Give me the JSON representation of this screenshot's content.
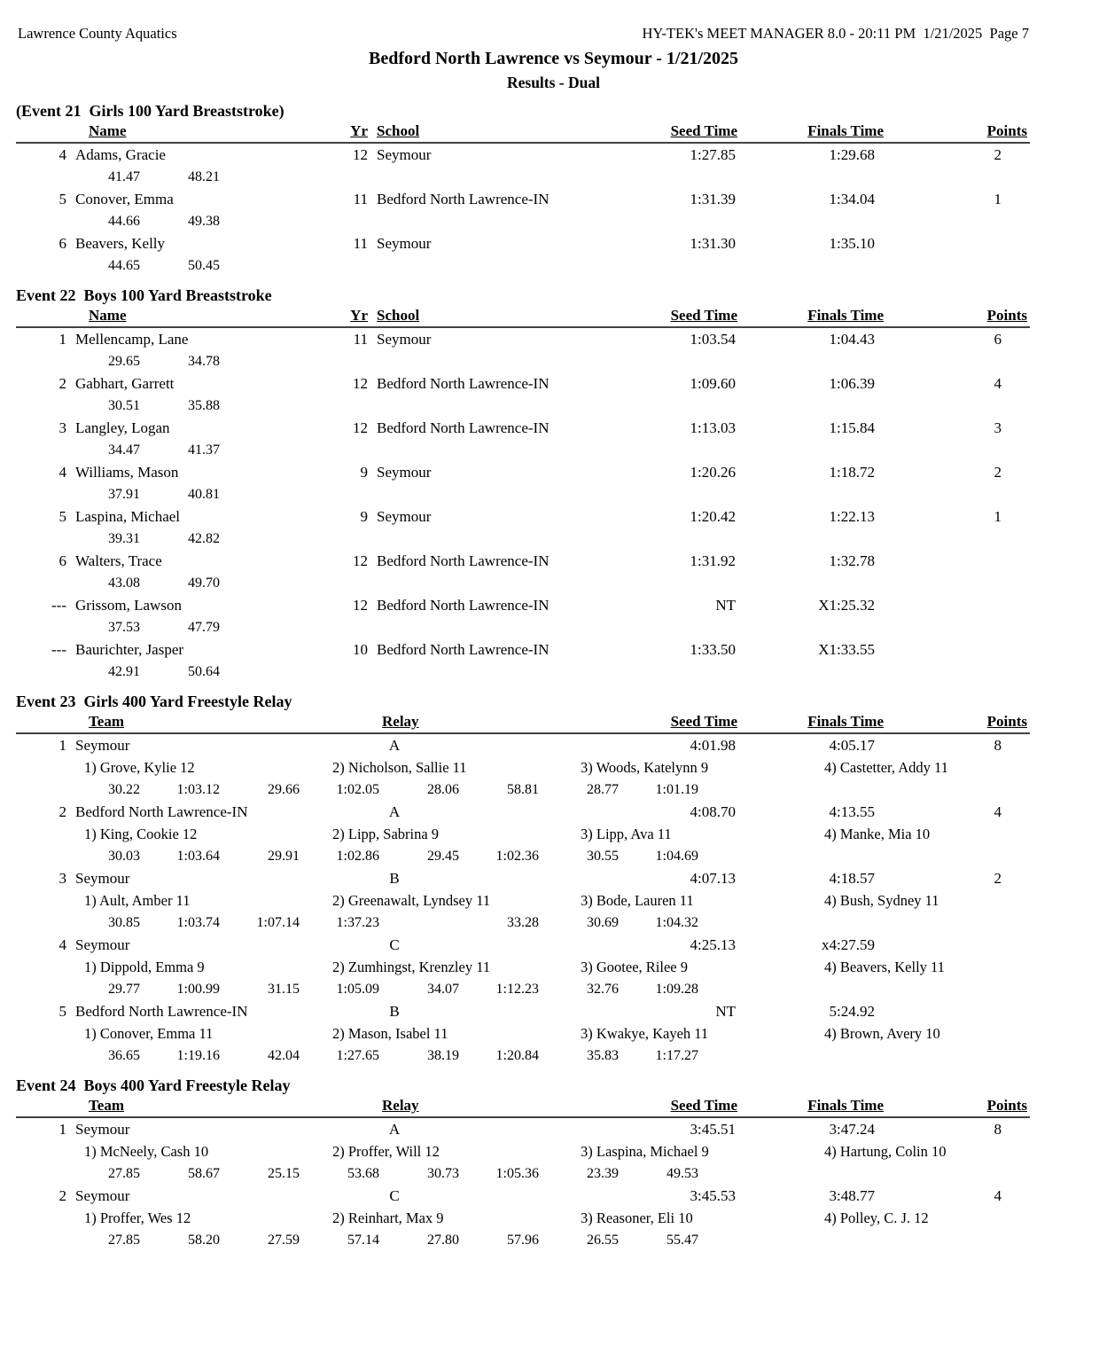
{
  "page": {
    "facility": "Lawrence County Aquatics",
    "report_info": "HY-TEK's MEET MANAGER 8.0 - 20:11 PM  1/21/2025  Page 7",
    "meet_title": "Bedford North Lawrence vs Seymour - 1/21/2025",
    "results_subtitle": "Results - Dual"
  },
  "individual_header": {
    "name": "Name",
    "yr": "Yr",
    "school": "School",
    "seed": "Seed Time",
    "finals": "Finals Time",
    "points": "Points"
  },
  "relay_header": {
    "team": "Team",
    "relay": "Relay",
    "seed": "Seed Time",
    "finals": "Finals Time",
    "points": "Points"
  },
  "events": [
    {
      "type": "individual",
      "title": "(Event 21  Girls 100 Yard Breaststroke)",
      "rows": [
        {
          "place": "4",
          "name": "Adams, Gracie",
          "yr": "12",
          "school": "Seymour",
          "seed": "1:27.85",
          "finals": "1:29.68",
          "points": "2",
          "splits": [
            "41.47",
            "48.21"
          ]
        },
        {
          "place": "5",
          "name": "Conover, Emma",
          "yr": "11",
          "school": "Bedford North Lawrence-IN",
          "seed": "1:31.39",
          "finals": "1:34.04",
          "points": "1",
          "splits": [
            "44.66",
            "49.38"
          ]
        },
        {
          "place": "6",
          "name": "Beavers, Kelly",
          "yr": "11",
          "school": "Seymour",
          "seed": "1:31.30",
          "finals": "1:35.10",
          "points": "",
          "splits": [
            "44.65",
            "50.45"
          ]
        }
      ]
    },
    {
      "type": "individual",
      "title": "Event 22  Boys 100 Yard Breaststroke",
      "rows": [
        {
          "place": "1",
          "name": "Mellencamp, Lane",
          "yr": "11",
          "school": "Seymour",
          "seed": "1:03.54",
          "finals": "1:04.43",
          "points": "6",
          "splits": [
            "29.65",
            "34.78"
          ]
        },
        {
          "place": "2",
          "name": "Gabhart, Garrett",
          "yr": "12",
          "school": "Bedford North Lawrence-IN",
          "seed": "1:09.60",
          "finals": "1:06.39",
          "points": "4",
          "splits": [
            "30.51",
            "35.88"
          ]
        },
        {
          "place": "3",
          "name": "Langley, Logan",
          "yr": "12",
          "school": "Bedford North Lawrence-IN",
          "seed": "1:13.03",
          "finals": "1:15.84",
          "points": "3",
          "splits": [
            "34.47",
            "41.37"
          ]
        },
        {
          "place": "4",
          "name": "Williams, Mason",
          "yr": "9",
          "school": "Seymour",
          "seed": "1:20.26",
          "finals": "1:18.72",
          "points": "2",
          "splits": [
            "37.91",
            "40.81"
          ]
        },
        {
          "place": "5",
          "name": "Laspina, Michael",
          "yr": "9",
          "school": "Seymour",
          "seed": "1:20.42",
          "finals": "1:22.13",
          "points": "1",
          "splits": [
            "39.31",
            "42.82"
          ]
        },
        {
          "place": "6",
          "name": "Walters, Trace",
          "yr": "12",
          "school": "Bedford North Lawrence-IN",
          "seed": "1:31.92",
          "finals": "1:32.78",
          "points": "",
          "splits": [
            "43.08",
            "49.70"
          ]
        },
        {
          "place": "---",
          "name": "Grissom, Lawson",
          "yr": "12",
          "school": "Bedford North Lawrence-IN",
          "seed": "NT",
          "finals": "X1:25.32",
          "points": "",
          "splits": [
            "37.53",
            "47.79"
          ]
        },
        {
          "place": "---",
          "name": "Baurichter, Jasper",
          "yr": "10",
          "school": "Bedford North Lawrence-IN",
          "seed": "1:33.50",
          "finals": "X1:33.55",
          "points": "",
          "splits": [
            "42.91",
            "50.64"
          ]
        }
      ]
    },
    {
      "type": "relay",
      "title": "Event 23  Girls 400 Yard Freestyle Relay",
      "rows": [
        {
          "place": "1",
          "team": "Seymour",
          "relay": "A",
          "seed": "4:01.98",
          "finals": "4:05.17",
          "points": "8",
          "swimmers": [
            "1) Grove, Kylie 12",
            "2) Nicholson, Sallie 11",
            "3) Woods, Katelynn 9",
            "4) Castetter, Addy 11"
          ],
          "splits": [
            "30.22",
            "1:03.12",
            "29.66",
            "1:02.05",
            "28.06",
            "58.81",
            "28.77",
            "1:01.19"
          ]
        },
        {
          "place": "2",
          "team": "Bedford North Lawrence-IN",
          "relay": "A",
          "seed": "4:08.70",
          "finals": "4:13.55",
          "points": "4",
          "swimmers": [
            "1) King, Cookie 12",
            "2) Lipp, Sabrina 9",
            "3) Lipp, Ava 11",
            "4) Manke, Mia 10"
          ],
          "splits": [
            "30.03",
            "1:03.64",
            "29.91",
            "1:02.86",
            "29.45",
            "1:02.36",
            "30.55",
            "1:04.69"
          ]
        },
        {
          "place": "3",
          "team": "Seymour",
          "relay": "B",
          "seed": "4:07.13",
          "finals": "4:18.57",
          "points": "2",
          "swimmers": [
            "1) Ault, Amber 11",
            "2) Greenawalt, Lyndsey 11",
            "3) Bode, Lauren 11",
            "4) Bush, Sydney 11"
          ],
          "splits": [
            "30.85",
            "1:03.74",
            "1:07.14",
            "1:37.23",
            "",
            "33.28",
            "30.69",
            "1:04.32"
          ]
        },
        {
          "place": "4",
          "team": "Seymour",
          "relay": "C",
          "seed": "4:25.13",
          "finals": "x4:27.59",
          "points": "",
          "swimmers": [
            "1) Dippold, Emma 9",
            "2) Zumhingst, Krenzley 11",
            "3) Gootee, Rilee 9",
            "4) Beavers, Kelly 11"
          ],
          "splits": [
            "29.77",
            "1:00.99",
            "31.15",
            "1:05.09",
            "34.07",
            "1:12.23",
            "32.76",
            "1:09.28"
          ]
        },
        {
          "place": "5",
          "team": "Bedford North Lawrence-IN",
          "relay": "B",
          "seed": "NT",
          "finals": "5:24.92",
          "points": "",
          "swimmers": [
            "1) Conover, Emma 11",
            "2) Mason, Isabel 11",
            "3) Kwakye, Kayeh 11",
            "4) Brown, Avery 10"
          ],
          "splits": [
            "36.65",
            "1:19.16",
            "42.04",
            "1:27.65",
            "38.19",
            "1:20.84",
            "35.83",
            "1:17.27"
          ]
        }
      ]
    },
    {
      "type": "relay",
      "title": "Event 24  Boys 400 Yard Freestyle Relay",
      "rows": [
        {
          "place": "1",
          "team": "Seymour",
          "relay": "A",
          "seed": "3:45.51",
          "finals": "3:47.24",
          "points": "8",
          "swimmers": [
            "1) McNeely, Cash 10",
            "2) Proffer, Will 12",
            "3) Laspina, Michael 9",
            "4) Hartung, Colin 10"
          ],
          "splits": [
            "27.85",
            "58.67",
            "25.15",
            "53.68",
            "30.73",
            "1:05.36",
            "23.39",
            "49.53"
          ]
        },
        {
          "place": "2",
          "team": "Seymour",
          "relay": "C",
          "seed": "3:45.53",
          "finals": "3:48.77",
          "points": "4",
          "swimmers": [
            "1) Proffer, Wes 12",
            "2) Reinhart, Max 9",
            "3) Reasoner, Eli 10",
            "4) Polley, C. J. 12"
          ],
          "splits": [
            "27.85",
            "58.20",
            "27.59",
            "57.14",
            "27.80",
            "57.96",
            "26.55",
            "55.47"
          ]
        }
      ]
    }
  ]
}
